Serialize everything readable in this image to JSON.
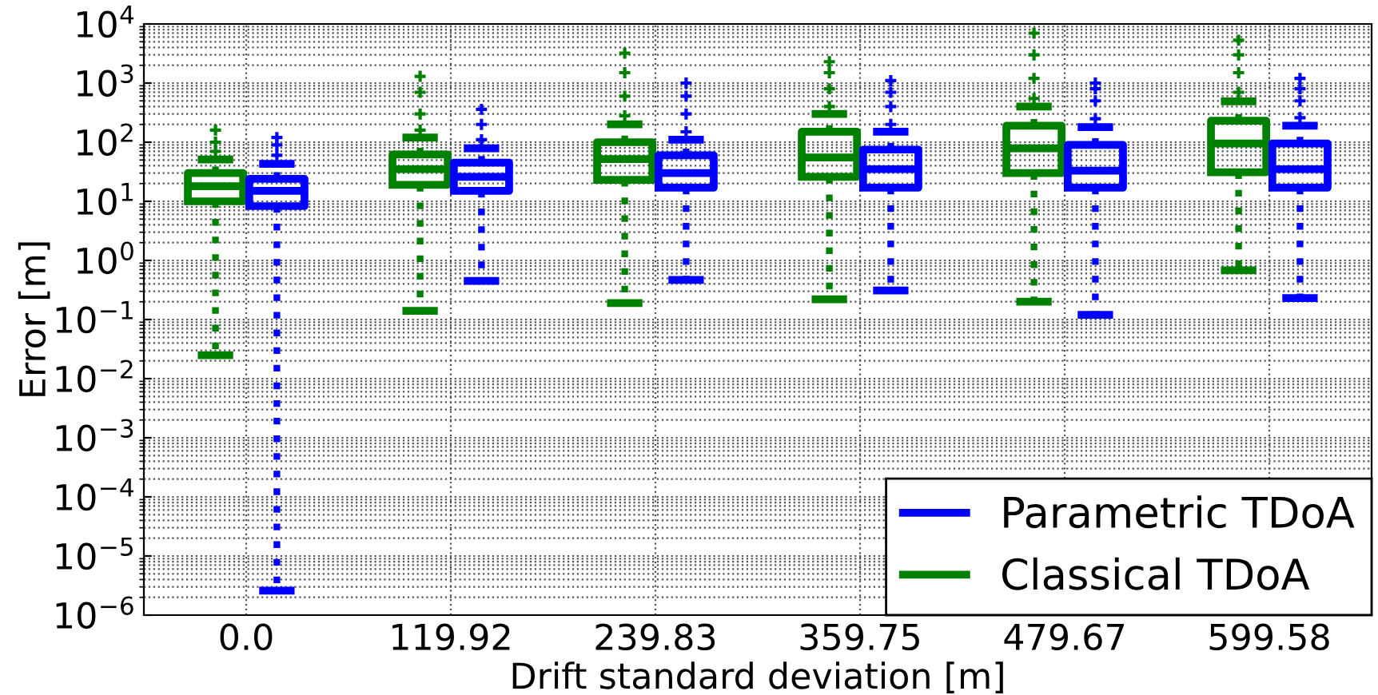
{
  "chart_data": {
    "type": "box",
    "xlabel": "Drift standard deviation [m]",
    "ylabel": "Error [m]",
    "categories": [
      "0.0",
      "119.92",
      "239.83",
      "359.75",
      "479.67",
      "599.58"
    ],
    "log": "y",
    "ylim": [
      1e-06,
      10000
    ],
    "grid": true,
    "legend": "bottom right",
    "line_style": "dotted",
    "marker": "cross",
    "yticks": [
      {
        "value": 1e-06,
        "label": "10$^{−6}$"
      },
      {
        "value": 1e-05,
        "label": "10$^{−5}$"
      },
      {
        "value": 0.0001,
        "label": "10$^{−4}$"
      },
      {
        "value": 0.001,
        "label": "10$^{−3}$"
      },
      {
        "value": 0.01,
        "label": "10$^{−2}$"
      },
      {
        "value": 0.1,
        "label": "10$^{−1}$"
      },
      {
        "value": 1,
        "label": "10$^{0}$"
      },
      {
        "value": 10,
        "label": "10$^{1}$"
      },
      {
        "value": 100,
        "label": "10$^{2}$"
      },
      {
        "value": 1000,
        "label": "10$^{3}$"
      },
      {
        "value": 10000,
        "label": "10$^{4}$"
      }
    ],
    "series": [
      {
        "name": "Classical TDoA",
        "color": "#008000",
        "boxes": [
          {
            "low": 0.025,
            "q1": 10,
            "median": 18,
            "q3": 30,
            "high": 51,
            "outliers": [
              70,
              100,
              160
            ]
          },
          {
            "low": 0.14,
            "q1": 19,
            "median": 35,
            "q3": 62,
            "high": 120,
            "outliers": [
              160,
              300,
              700,
              1300
            ]
          },
          {
            "low": 0.19,
            "q1": 23,
            "median": 52,
            "q3": 100,
            "high": 200,
            "outliers": [
              280,
              600,
              1500,
              3200
            ]
          },
          {
            "low": 0.22,
            "q1": 26,
            "median": 55,
            "q3": 150,
            "high": 300,
            "outliers": [
              400,
              800,
              1500,
              2300
            ]
          },
          {
            "low": 0.2,
            "q1": 30,
            "median": 79,
            "q3": 190,
            "high": 400,
            "outliers": [
              550,
              1200,
              3000,
              7000
            ]
          },
          {
            "low": 0.68,
            "q1": 31,
            "median": 95,
            "q3": 230,
            "high": 490,
            "outliers": [
              700,
              1500,
              3000,
              5300
            ]
          }
        ]
      },
      {
        "name": "Parametric TDoA",
        "color": "#0000ff",
        "boxes": [
          {
            "low": 2.6e-06,
            "q1": 8.3,
            "median": 15,
            "q3": 24,
            "high": 43,
            "outliers": [
              60,
              90,
              120
            ]
          },
          {
            "low": 0.45,
            "q1": 15,
            "median": 26,
            "q3": 45,
            "high": 79,
            "outliers": [
              110,
              200,
              360
            ]
          },
          {
            "low": 0.47,
            "q1": 17,
            "median": 30,
            "q3": 60,
            "high": 110,
            "outliers": [
              150,
              300,
              600,
              1000
            ]
          },
          {
            "low": 0.31,
            "q1": 17,
            "median": 35,
            "q3": 75,
            "high": 150,
            "outliers": [
              200,
              400,
              700,
              1100
            ]
          },
          {
            "low": 0.12,
            "q1": 17,
            "median": 33,
            "q3": 90,
            "high": 180,
            "outliers": [
              250,
              500,
              800,
              1000
            ]
          },
          {
            "low": 0.23,
            "q1": 17,
            "median": 35,
            "q3": 95,
            "high": 190,
            "outliers": [
              260,
              500,
              800,
              1200
            ]
          }
        ]
      }
    ]
  }
}
